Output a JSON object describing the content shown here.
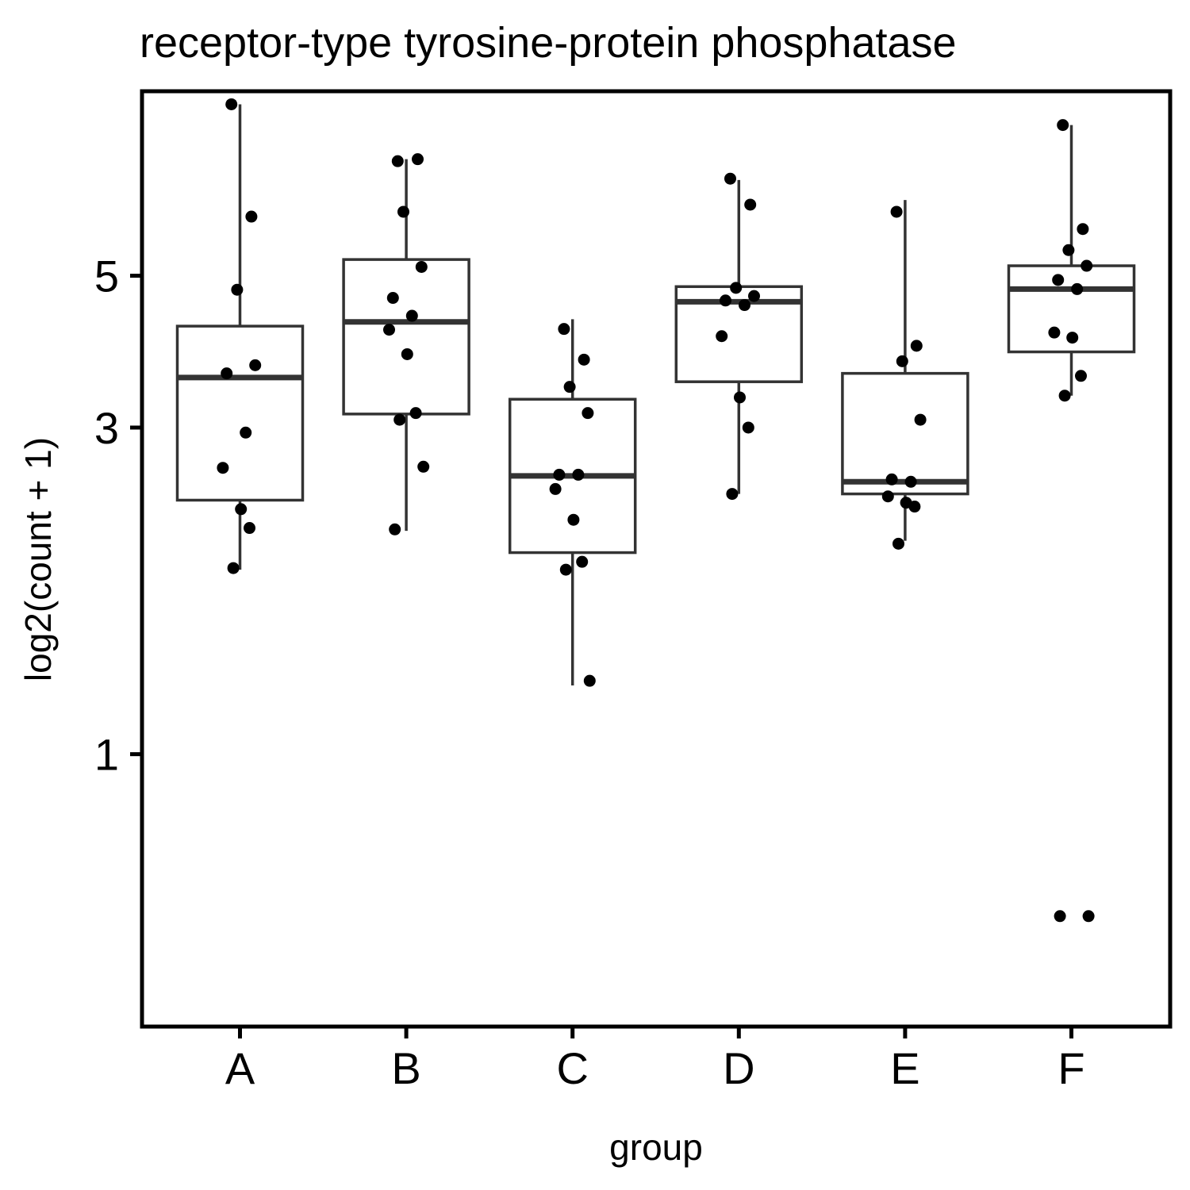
{
  "chart_data": {
    "type": "boxplot",
    "title": "receptor-type tyrosine-protein phosphatase",
    "xlabel": "group",
    "ylabel": "log2(count + 1)",
    "y_scale": "log2",
    "ylim": [
      0.4,
      9.3
    ],
    "y_ticks": [
      1,
      3,
      5
    ],
    "grid": false,
    "legend": "none",
    "categories": [
      "A",
      "B",
      "C",
      "D",
      "E",
      "F"
    ],
    "boxes": [
      {
        "group": "A",
        "whisker_low": 1.86,
        "q1": 2.35,
        "median": 3.55,
        "q3": 4.22,
        "whisker_high": 8.9
      },
      {
        "group": "B",
        "whisker_low": 2.12,
        "q1": 3.14,
        "median": 4.28,
        "q3": 5.28,
        "whisker_high": 7.4
      },
      {
        "group": "C",
        "whisker_low": 1.26,
        "q1": 1.97,
        "median": 2.55,
        "q3": 3.3,
        "whisker_high": 4.32
      },
      {
        "group": "D",
        "whisker_low": 2.4,
        "q1": 3.5,
        "median": 4.58,
        "q3": 4.82,
        "whisker_high": 6.9
      },
      {
        "group": "E",
        "whisker_low": 2.05,
        "q1": 2.4,
        "median": 2.5,
        "q3": 3.6,
        "whisker_high": 6.45
      },
      {
        "group": "F",
        "whisker_low": 3.34,
        "q1": 3.87,
        "median": 4.78,
        "q3": 5.17,
        "whisker_high": 8.3
      }
    ],
    "points": [
      {
        "group": "A",
        "values": [
          8.9,
          6.1,
          4.77,
          3.7,
          3.6,
          2.95,
          2.62,
          2.28,
          2.14,
          1.87
        ]
      },
      {
        "group": "B",
        "values": [
          7.35,
          7.4,
          6.2,
          5.15,
          4.64,
          4.37,
          4.17,
          3.84,
          3.15,
          3.08,
          2.63,
          2.13
        ]
      },
      {
        "group": "C",
        "values": [
          4.18,
          3.77,
          3.44,
          3.15,
          2.56,
          2.56,
          2.44,
          2.2,
          1.91,
          1.86,
          1.28
        ]
      },
      {
        "group": "D",
        "values": [
          6.93,
          6.35,
          4.8,
          4.67,
          4.6,
          4.53,
          4.08,
          3.32,
          3.0,
          2.4
        ]
      },
      {
        "group": "E",
        "values": [
          6.2,
          3.95,
          3.75,
          3.08,
          2.52,
          2.5,
          2.38,
          2.33,
          2.3,
          2.03
        ]
      },
      {
        "group": "F",
        "values": [
          8.3,
          5.85,
          5.45,
          5.17,
          4.93,
          4.78,
          4.13,
          4.06,
          3.57,
          3.34,
          0.58,
          0.58
        ]
      }
    ]
  }
}
